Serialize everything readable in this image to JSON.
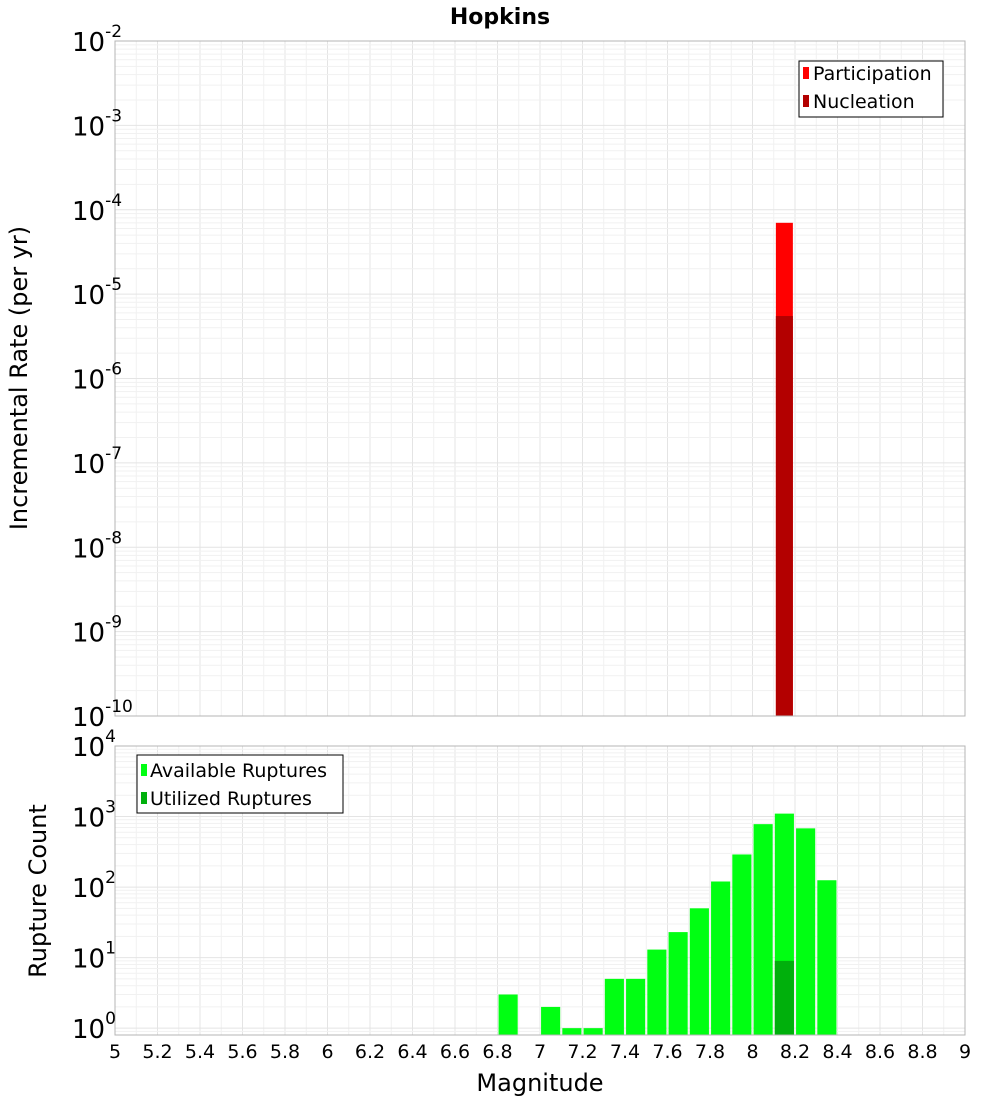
{
  "title": "Hopkins",
  "colors": {
    "participation": "#ff0000",
    "nucleation": "#b30000",
    "available": "#00ff12",
    "utilized": "#00b00c",
    "grid": "#e8e8e8",
    "frame": "#b4b4b4"
  },
  "chart_data": [
    {
      "type": "bar",
      "ylabel": "Incremental Rate (per yr)",
      "yscale": "log",
      "ylim": [
        1e-10,
        0.01
      ],
      "xlim": [
        5,
        9
      ],
      "y_ticks": [
        {
          "base": "10",
          "exp": "-10",
          "value": 1e-10
        },
        {
          "base": "10",
          "exp": "-9",
          "value": 1e-09
        },
        {
          "base": "10",
          "exp": "-8",
          "value": 1e-08
        },
        {
          "base": "10",
          "exp": "-7",
          "value": 1e-07
        },
        {
          "base": "10",
          "exp": "-6",
          "value": 1e-06
        },
        {
          "base": "10",
          "exp": "-5",
          "value": 1e-05
        },
        {
          "base": "10",
          "exp": "-4",
          "value": 0.0001
        },
        {
          "base": "10",
          "exp": "-3",
          "value": 0.001
        },
        {
          "base": "10",
          "exp": "-2",
          "value": 0.01
        }
      ],
      "legend": {
        "position": "top-right",
        "entries": [
          "Participation",
          "Nucleation"
        ]
      },
      "series": [
        {
          "name": "Participation",
          "x": [
            8.15
          ],
          "values": [
            7e-05
          ]
        },
        {
          "name": "Nucleation",
          "x": [
            8.15
          ],
          "values": [
            5.5e-06
          ]
        }
      ],
      "bar_width": 0.08,
      "grid": true
    },
    {
      "type": "bar",
      "xlabel": "Magnitude",
      "ylabel": "Rupture Count",
      "yscale": "log",
      "ylim": [
        0.8,
        10000
      ],
      "xlim": [
        5,
        9
      ],
      "x_ticks": [
        "5",
        "5.2",
        "5.4",
        "5.6",
        "5.8",
        "6",
        "6.2",
        "6.4",
        "6.6",
        "6.8",
        "7",
        "7.2",
        "7.4",
        "7.6",
        "7.8",
        "8",
        "8.2",
        "8.4",
        "8.6",
        "8.8",
        "9"
      ],
      "y_ticks": [
        {
          "base": "10",
          "exp": "0",
          "value": 1
        },
        {
          "base": "10",
          "exp": "1",
          "value": 10
        },
        {
          "base": "10",
          "exp": "2",
          "value": 100
        },
        {
          "base": "10",
          "exp": "3",
          "value": 1000
        },
        {
          "base": "10",
          "exp": "4",
          "value": 10000
        }
      ],
      "legend": {
        "position": "top-left",
        "entries": [
          "Available Ruptures",
          "Utilized Ruptures"
        ]
      },
      "series": [
        {
          "name": "Available Ruptures",
          "x": [
            6.85,
            7.05,
            7.15,
            7.25,
            7.35,
            7.45,
            7.55,
            7.65,
            7.75,
            7.85,
            7.95,
            8.05,
            8.15,
            8.25,
            8.35
          ],
          "values": [
            3,
            2,
            1,
            1,
            5,
            5,
            13,
            23,
            50,
            120,
            290,
            780,
            1100,
            680,
            125
          ]
        },
        {
          "name": "Utilized Ruptures",
          "x": [
            8.15
          ],
          "values": [
            9
          ]
        }
      ],
      "bar_width": 0.09,
      "grid": true
    }
  ]
}
